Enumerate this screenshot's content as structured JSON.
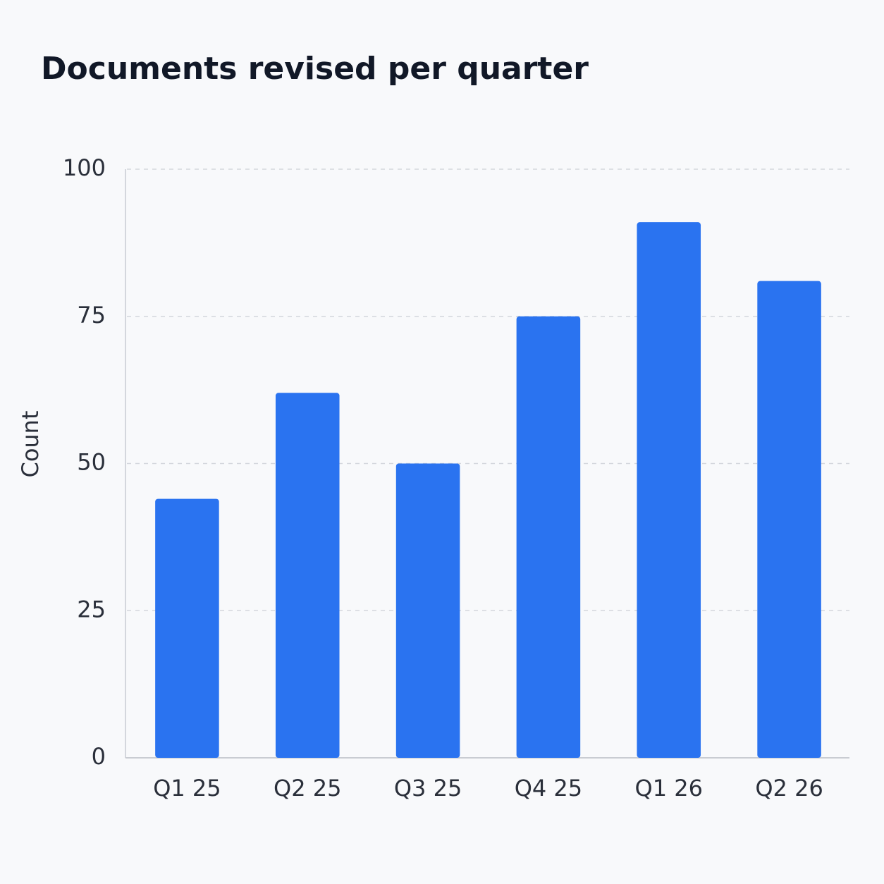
{
  "chart_data": {
    "type": "bar",
    "title": "Documents revised per quarter",
    "y_label": "Count",
    "categories": [
      "Q1 25",
      "Q2 25",
      "Q3 25",
      "Q4 25",
      "Q1 26",
      "Q2 26"
    ],
    "values": [
      44,
      62,
      50,
      75,
      91,
      81
    ],
    "color": "#2a73f0",
    "ylim": [
      0,
      100
    ],
    "yticks": [
      0,
      25,
      50,
      75,
      100
    ],
    "grid": true
  }
}
